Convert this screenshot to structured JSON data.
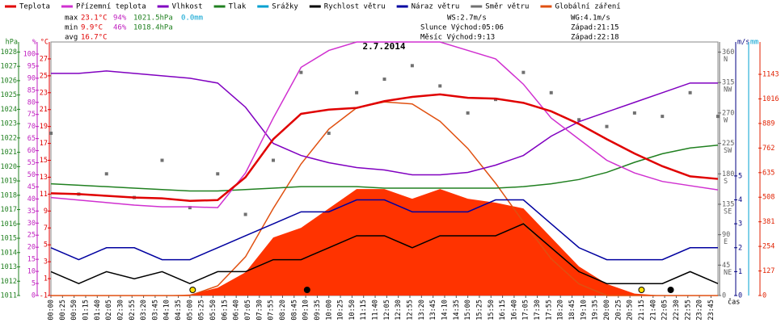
{
  "chart_data": {
    "type": "line",
    "title": "2.7.2014",
    "x_label": "čas",
    "xlim": [
      0,
      1440
    ],
    "xticks": [
      {
        "value": 0,
        "label": "00:00"
      },
      {
        "value": 25,
        "label": "00:25"
      },
      {
        "value": 50,
        "label": "00:50"
      },
      {
        "value": 75,
        "label": "01:15"
      },
      {
        "value": 100,
        "label": "01:40"
      },
      {
        "value": 125,
        "label": "02:05"
      },
      {
        "value": 150,
        "label": "02:30"
      },
      {
        "value": 175,
        "label": "02:55"
      },
      {
        "value": 200,
        "label": "03:20"
      },
      {
        "value": 225,
        "label": "03:45"
      },
      {
        "value": 250,
        "label": "04:10"
      },
      {
        "value": 275,
        "label": "04:35"
      },
      {
        "value": 300,
        "label": "05:00"
      },
      {
        "value": 325,
        "label": "05:25"
      },
      {
        "value": 350,
        "label": "05:50"
      },
      {
        "value": 375,
        "label": "06:15"
      },
      {
        "value": 400,
        "label": "06:40"
      },
      {
        "value": 425,
        "label": "07:05"
      },
      {
        "value": 450,
        "label": "07:30"
      },
      {
        "value": 475,
        "label": "07:55"
      },
      {
        "value": 500,
        "label": "08:20"
      },
      {
        "value": 525,
        "label": "08:45"
      },
      {
        "value": 550,
        "label": "09:10"
      },
      {
        "value": 575,
        "label": "09:35"
      },
      {
        "value": 600,
        "label": "10:00"
      },
      {
        "value": 625,
        "label": "10:25"
      },
      {
        "value": 650,
        "label": "10:50"
      },
      {
        "value": 675,
        "label": "11:15"
      },
      {
        "value": 700,
        "label": "11:40"
      },
      {
        "value": 725,
        "label": "12:05"
      },
      {
        "value": 750,
        "label": "12:30"
      },
      {
        "value": 775,
        "label": "12:55"
      },
      {
        "value": 800,
        "label": "13:20"
      },
      {
        "value": 825,
        "label": "13:45"
      },
      {
        "value": 850,
        "label": "14:10"
      },
      {
        "value": 875,
        "label": "14:35"
      },
      {
        "value": 900,
        "label": "15:00"
      },
      {
        "value": 925,
        "label": "15:25"
      },
      {
        "value": 950,
        "label": "15:50"
      },
      {
        "value": 975,
        "label": "16:15"
      },
      {
        "value": 1000,
        "label": "16:40"
      },
      {
        "value": 1025,
        "label": "17:05"
      },
      {
        "value": 1050,
        "label": "17:30"
      },
      {
        "value": 1075,
        "label": "17:55"
      },
      {
        "value": 1100,
        "label": "18:20"
      },
      {
        "value": 1125,
        "label": "18:45"
      },
      {
        "value": 1150,
        "label": "19:10"
      },
      {
        "value": 1175,
        "label": "19:35"
      },
      {
        "value": 1200,
        "label": "20:00"
      },
      {
        "value": 1225,
        "label": "20:25"
      },
      {
        "value": 1250,
        "label": "20:50"
      },
      {
        "value": 1275,
        "label": "21:15"
      },
      {
        "value": 1300,
        "label": "21:40"
      },
      {
        "value": 1325,
        "label": "22:05"
      },
      {
        "value": 1350,
        "label": "22:30"
      },
      {
        "value": 1375,
        "label": "22:55"
      },
      {
        "value": 1400,
        "label": "23:20"
      },
      {
        "value": 1425,
        "label": "23:45"
      }
    ],
    "x": [
      0,
      60,
      120,
      180,
      240,
      300,
      360,
      420,
      480,
      540,
      600,
      660,
      720,
      780,
      840,
      900,
      960,
      1020,
      1080,
      1140,
      1200,
      1260,
      1320,
      1380,
      1440
    ],
    "axes": {
      "p": {
        "label": "hPa",
        "color": "#208020",
        "side": "left",
        "col": 0,
        "ylim": [
          1011,
          1028.7
        ],
        "yticks": [
          1011,
          1012,
          1013,
          1014,
          1015,
          1016,
          1017,
          1018,
          1019,
          1020,
          1021,
          1022,
          1023,
          1024,
          1025,
          1026,
          1027,
          1028
        ]
      },
      "rh": {
        "label": "%",
        "color": "#c020c0",
        "side": "left",
        "col": 1,
        "ylim": [
          0,
          105
        ],
        "yticks": [
          0,
          5,
          10,
          15,
          20,
          25,
          30,
          35,
          40,
          45,
          50,
          55,
          60,
          65,
          70,
          75,
          80,
          85,
          90,
          95,
          100
        ]
      },
      "t": {
        "label": "°C",
        "color": "#e00000",
        "side": "left",
        "col": 2,
        "ylim": [
          -1,
          29
        ],
        "yticks": [
          -1,
          1,
          3,
          5,
          7,
          9,
          11,
          13,
          15,
          17,
          19,
          21,
          23,
          25,
          27
        ]
      },
      "dir": {
        "label": "",
        "color": "#606060",
        "side": "right",
        "col": 0,
        "ylim": [
          0,
          375
        ],
        "yticks": [
          0,
          45,
          90,
          135,
          180,
          225,
          270,
          315,
          360
        ],
        "compass": [
          "",
          "NE",
          "E",
          "SE",
          "S",
          "SW",
          "W",
          "NW",
          "N"
        ]
      },
      "ws": {
        "label": "m/s",
        "color": "#000080",
        "side": "right",
        "col": 1,
        "ylim": [
          0,
          10.6
        ],
        "yticks": [
          0,
          1,
          2,
          3,
          4,
          5
        ]
      },
      "mm": {
        "label": "mm",
        "color": "#00a0d0",
        "side": "right",
        "col": 2,
        "ylim": [
          -1,
          10
        ],
        "yticks": []
      },
      "rad": {
        "label": "",
        "color": "#e02000",
        "side": "right",
        "col": 3,
        "ylim": [
          0,
          1310
        ],
        "yticks": [
          0,
          127,
          254,
          381,
          508,
          635,
          762,
          889,
          1016,
          1143
        ]
      }
    },
    "series": [
      {
        "name": "Globální záření",
        "color": "#ff3300",
        "axis": "rad",
        "style": "area",
        "values": [
          0,
          0,
          0,
          0,
          0,
          5,
          40,
          120,
          300,
          350,
          450,
          550,
          550,
          500,
          550,
          500,
          480,
          450,
          300,
          150,
          60,
          10,
          0,
          0,
          0
        ]
      },
      {
        "name": "Globální záření",
        "color": "#e05010",
        "axis": "rad",
        "style": "line",
        "values": [
          0,
          0,
          0,
          0,
          0,
          0,
          50,
          200,
          450,
          680,
          860,
          970,
          1000,
          990,
          900,
          760,
          580,
          380,
          190,
          60,
          0,
          0,
          0,
          0,
          0
        ]
      },
      {
        "name": "Směr větru",
        "color": "#707070",
        "axis": "dir",
        "style": "scatter",
        "values": [
          240,
          150,
          180,
          145,
          200,
          130,
          180,
          120,
          200,
          330,
          240,
          300,
          320,
          340,
          310,
          270,
          290,
          330,
          300,
          260,
          250,
          270,
          265,
          300,
          265
        ]
      },
      {
        "name": "Náraz větru",
        "color": "#0000a0",
        "axis": "ws",
        "style": "line",
        "values": [
          2,
          1.5,
          2,
          2,
          1.5,
          1.5,
          2,
          2.5,
          3,
          3.5,
          3.5,
          4,
          4,
          3.5,
          3.5,
          3.5,
          4,
          4,
          3,
          2,
          1.5,
          1.5,
          1.5,
          2,
          2
        ]
      },
      {
        "name": "Rychlost větru",
        "color": "#000000",
        "axis": "ws",
        "style": "line",
        "values": [
          1,
          0.5,
          1,
          0.7,
          1,
          0.5,
          1,
          1,
          1.5,
          1.5,
          2,
          2.5,
          2.5,
          2,
          2.5,
          2.5,
          2.5,
          3,
          2,
          1,
          0.5,
          0.5,
          0.5,
          1,
          0.5
        ]
      },
      {
        "name": "Tlak",
        "color": "#208020",
        "axis": "p",
        "style": "line",
        "values": [
          1018.8,
          1018.7,
          1018.6,
          1018.5,
          1018.4,
          1018.3,
          1018.3,
          1018.4,
          1018.5,
          1018.6,
          1018.6,
          1018.6,
          1018.5,
          1018.5,
          1018.5,
          1018.5,
          1018.5,
          1018.6,
          1018.8,
          1019.1,
          1019.6,
          1020.3,
          1020.9,
          1021.3,
          1021.5
        ]
      },
      {
        "name": "Vlhkost",
        "color": "#8000c0",
        "axis": "rh",
        "style": "line",
        "values": [
          92,
          92,
          93,
          92,
          91,
          90,
          88,
          78,
          63,
          58,
          55,
          53,
          52,
          50,
          50,
          51,
          54,
          58,
          66,
          72,
          76,
          80,
          84,
          88,
          88
        ]
      },
      {
        "name": "Přízemní teplota",
        "color": "#d030d0",
        "axis": "t",
        "style": "line",
        "values": [
          10.6,
          10.3,
          10.0,
          9.7,
          9.5,
          9.5,
          9.4,
          13.5,
          20,
          26,
          28,
          29,
          29,
          29,
          29,
          28,
          27,
          24,
          20,
          17.5,
          15,
          13.5,
          12.5,
          12,
          11.5
        ]
      },
      {
        "name": "Teplota",
        "color": "#e00000",
        "axis": "t",
        "style": "line",
        "values": [
          11.1,
          11.0,
          10.8,
          10.6,
          10.5,
          10.2,
          10.3,
          13,
          17.5,
          20.5,
          21,
          21.2,
          22,
          22.5,
          22.8,
          22.4,
          22.3,
          21.8,
          20.8,
          19.3,
          17.5,
          15.8,
          14.3,
          13.1,
          12.8
        ]
      }
    ],
    "legend": [
      {
        "name": "Teplota",
        "color": "#e00000"
      },
      {
        "name": "Přízemní teplota",
        "color": "#d030d0"
      },
      {
        "name": "Vlhkost",
        "color": "#8000c0"
      },
      {
        "name": "Tlak",
        "color": "#208020"
      },
      {
        "name": "Srážky",
        "color": "#00a0d0"
      },
      {
        "name": "Rychlost větru",
        "color": "#000000"
      },
      {
        "name": "Náraz větru",
        "color": "#0000a0"
      },
      {
        "name": "Směr větru",
        "color": "#707070"
      },
      {
        "name": "Globální záření",
        "color": "#e05010"
      }
    ],
    "stats": [
      {
        "label": "max",
        "t": "23.1°C",
        "rh": "94%",
        "p": "1021.5hPa",
        "mm": "0.0mm"
      },
      {
        "label": "min",
        "t": "9.9°C",
        "rh": "46%",
        "p": "1018.4hPa"
      },
      {
        "label": "avg",
        "t": "16.7°C"
      }
    ],
    "info": [
      "WS:2.7m/s",
      "WG:4.1m/s",
      "Slunce Východ:05:06",
      "Západ:21:15",
      "Měsíc Východ:9:13",
      "Západ:22:18"
    ],
    "markers": [
      {
        "x": 306,
        "color": "#ffe000"
      },
      {
        "x": 1275,
        "color": "#ffe000"
      },
      {
        "x": 553,
        "color": "#000000"
      },
      {
        "x": 1338,
        "color": "#000000"
      }
    ]
  }
}
